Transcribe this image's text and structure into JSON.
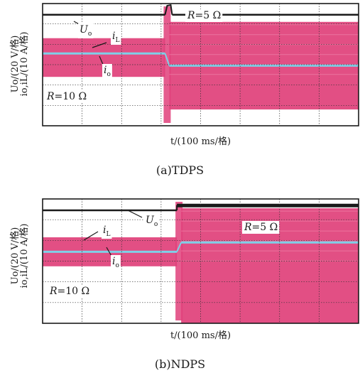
{
  "chart_data": [
    {
      "panel_id": "a",
      "type": "line",
      "caption": "(a)TDPS",
      "xlabel": "t/(100 ms/格)",
      "ylabel_line1": "Uo/(20 V/格)",
      "ylabel_line2": "io,iL/(10 A/格)",
      "grid": true,
      "x_divisions": 8,
      "y_divisions": 6,
      "step_x_div": 3.1,
      "annotations": [
        {
          "name": "R=5 Ω",
          "text": "R=5 Ω"
        },
        {
          "name": "R=10 Ω",
          "text": "R=10 Ω"
        },
        {
          "name": "Uo",
          "text": "Uo"
        },
        {
          "name": "iL",
          "text": "iL"
        },
        {
          "name": "io",
          "text": "io"
        }
      ],
      "series": [
        {
          "name": "Uo",
          "color": "#1a1a1a",
          "level_div_before": 0.55,
          "level_div_after": 0.55,
          "transient": "overshoot"
        },
        {
          "name": "iL",
          "color": "#e0407a",
          "band_div_before": [
            1.7,
            3.6
          ],
          "band_div_after": [
            0.9,
            5.2
          ]
        },
        {
          "name": "io",
          "color": "#7fd0e8",
          "level_div_before": 2.45,
          "level_div_after": 3.05
        }
      ]
    },
    {
      "panel_id": "b",
      "type": "line",
      "caption": "(b)NDPS",
      "xlabel": "t/(100 ms/格)",
      "ylabel_line1": "Uo/(20 V/格)",
      "ylabel_line2": "io,iL/(10 A/格)",
      "grid": true,
      "x_divisions": 8,
      "y_divisions": 6,
      "step_x_div": 3.4,
      "annotations": [
        {
          "name": "R=5 Ω",
          "text": "R=5 Ω"
        },
        {
          "name": "R=10 Ω",
          "text": "R=10 Ω"
        },
        {
          "name": "Uo",
          "text": "Uo"
        },
        {
          "name": "iL",
          "text": "iL"
        },
        {
          "name": "io",
          "text": "io"
        }
      ],
      "series": [
        {
          "name": "Uo",
          "color": "#1a1a1a",
          "level_div_before": 0.55,
          "level_div_after": 0.3,
          "transient": "step"
        },
        {
          "name": "iL",
          "color": "#e0407a",
          "band_div_before": [
            1.85,
            3.25
          ],
          "band_div_after": [
            0.45,
            6.0
          ]
        },
        {
          "name": "io",
          "color": "#7fd0e8",
          "level_div_before": 2.55,
          "level_div_after": 2.1
        }
      ]
    }
  ]
}
